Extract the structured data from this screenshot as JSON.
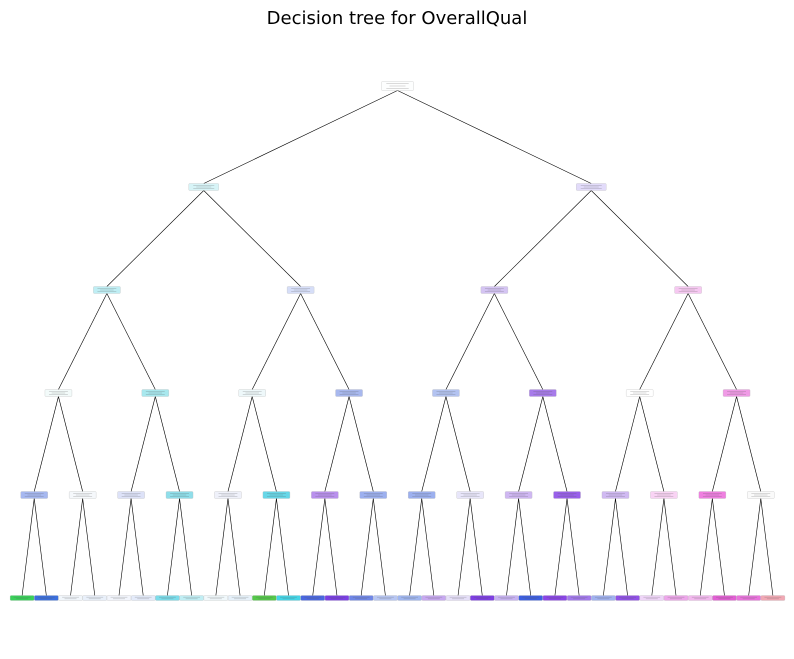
{
  "title": "Decision tree for OverallQual",
  "tree": {
    "depth": 5,
    "colors": {
      "levels": [
        [
          "#fdfefe"
        ],
        [
          "#d7f4f7",
          "#e2dbfa"
        ],
        [
          "#bfeef4",
          "#d6def8",
          "#d4c4f3",
          "#f6c8f1"
        ],
        [
          "#f3fbfa",
          "#a8e8ee",
          "#eef8fa",
          "#a8b8ee",
          "#b3c3f1",
          "#a77bea",
          "#ffffff",
          "#f09ae6"
        ],
        [
          "#a6b8f0",
          "#f5f8fb",
          "#dde2f8",
          "#8fdeea",
          "#eff1fa",
          "#66d7e8",
          "#b990ed",
          "#9cb0ef",
          "#9cb0ef",
          "#e8e6fa",
          "#cfb7f2",
          "#9960ea",
          "#d0b9f2",
          "#f9d3f4",
          "#ef7fe0",
          "#fafafa"
        ],
        [
          "#3ad05a",
          "#3b6fdd",
          "#f1f6fb",
          "#e9f0fa",
          "#f2f5fc",
          "#e4ebfa",
          "#7bdcea",
          "#c0eef4",
          "#f0f8fb",
          "#e6f1fa",
          "#55c84a",
          "#44d4e6",
          "#4a67e0",
          "#7a3fe3",
          "#6f86e6",
          "#b7c6f3",
          "#a0b6ef",
          "#c7a8f0",
          "#e5dff8",
          "#7e3fe2",
          "#c7b2f2",
          "#3d5fe0",
          "#8a45e6",
          "#a279eb",
          "#a0b1ef",
          "#9051e6",
          "#efd5f8",
          "#eda6ea",
          "#f2b8ee",
          "#e15fd3",
          "#e873db",
          "#f1a8b4"
        ]
      ]
    }
  }
}
